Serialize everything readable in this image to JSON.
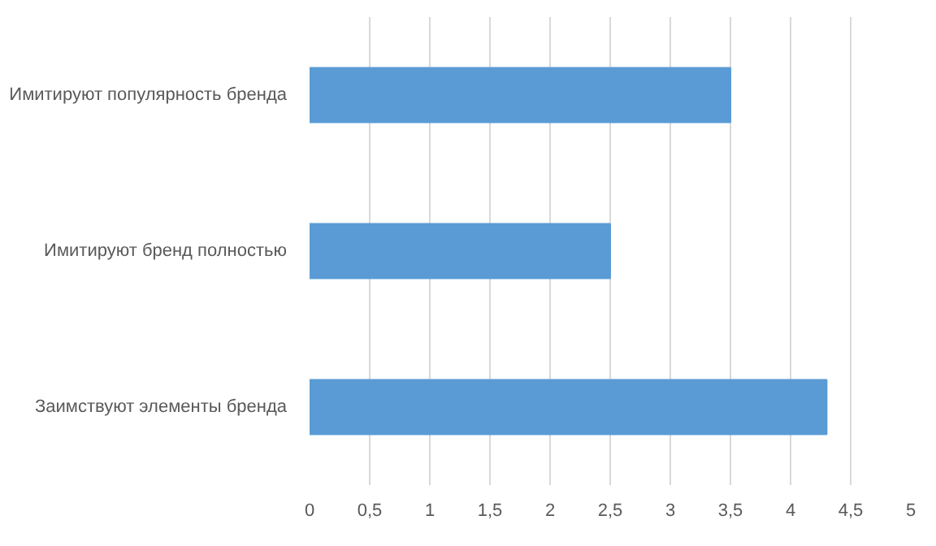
{
  "chart_data": {
    "type": "bar",
    "orientation": "horizontal",
    "categories": [
      "Имитируют популярность бренда",
      "Имитируют бренд полностью",
      "Заимствуют элементы бренда"
    ],
    "values": [
      3.5,
      2.5,
      4.3
    ],
    "color": "#5b9bd5",
    "xlim": [
      0,
      5
    ],
    "xticks": [
      0,
      {
        "value": 0.5,
        "label": "0,5"
      },
      1,
      {
        "value": 1.5,
        "label": "1,5"
      },
      2,
      {
        "value": 2.5,
        "label": "2,5"
      },
      3,
      {
        "value": 3.5,
        "label": "3,5"
      },
      4,
      {
        "value": 4.5,
        "label": "4,5"
      },
      5
    ],
    "grid": "x"
  }
}
